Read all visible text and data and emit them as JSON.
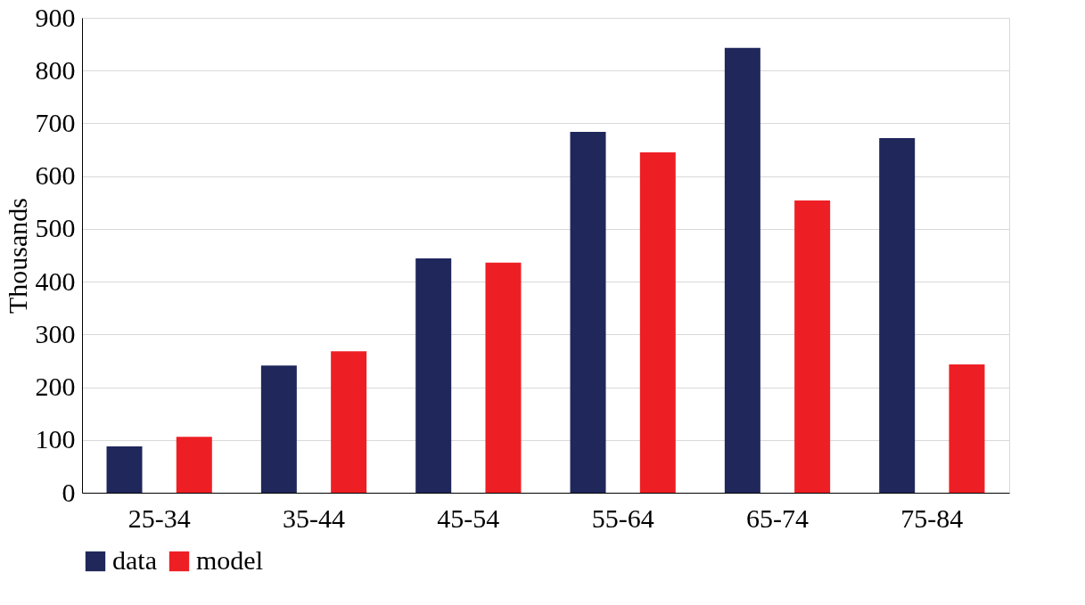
{
  "chart_data": {
    "type": "bar",
    "ylabel": "Thousands",
    "categories": [
      "25-34",
      "35-44",
      "45-54",
      "55-64",
      "65-74",
      "75-84"
    ],
    "series": [
      {
        "name": "data",
        "color": "#1f275b",
        "values": [
          88,
          241,
          444,
          684,
          843,
          672
        ]
      },
      {
        "name": "model",
        "color": "#ee1f24",
        "values": [
          106,
          268,
          436,
          645,
          554,
          243
        ]
      }
    ],
    "ylim": [
      0,
      900
    ],
    "yticks": [
      0,
      100,
      200,
      300,
      400,
      500,
      600,
      700,
      800,
      900
    ],
    "grid": "y",
    "legend": "bottom"
  }
}
